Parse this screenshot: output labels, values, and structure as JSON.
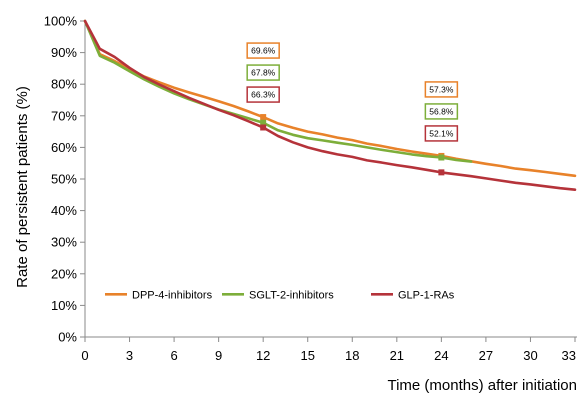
{
  "chart_data": {
    "type": "line",
    "title": "",
    "xlabel": "Time (months) after initiation",
    "ylabel": "Rate of persistent patients (%)",
    "xlim": [
      0,
      33
    ],
    "ylim": [
      0,
      100
    ],
    "x_ticks": [
      0,
      3,
      6,
      9,
      12,
      15,
      18,
      21,
      24,
      27,
      30,
      33
    ],
    "y_ticks": [
      0,
      10,
      20,
      30,
      40,
      50,
      60,
      70,
      80,
      90,
      100
    ],
    "y_tick_suffix": "%",
    "grid": false,
    "legend_position": "lower-center",
    "series": [
      {
        "name": "DPP-4-inhibitors",
        "color": "#E8822A",
        "x": [
          0,
          1,
          2,
          3,
          4,
          5,
          6,
          7,
          8,
          9,
          10,
          11,
          12,
          13,
          14,
          15,
          16,
          17,
          18,
          19,
          20,
          21,
          22,
          23,
          24,
          25,
          26,
          27,
          28,
          29,
          30,
          31,
          32,
          33
        ],
        "values": [
          100,
          89.5,
          87.3,
          84.8,
          82.4,
          80.6,
          78.9,
          77.4,
          76.0,
          74.6,
          73.1,
          71.4,
          69.6,
          67.6,
          66.2,
          65.0,
          64.1,
          63.1,
          62.3,
          61.2,
          60.4,
          59.5,
          58.7,
          58.0,
          57.3,
          56.4,
          55.6,
          54.8,
          54.1,
          53.3,
          52.8,
          52.2,
          51.6,
          51.0
        ]
      },
      {
        "name": "SGLT-2-inhibitors",
        "color": "#7DAE3A",
        "x": [
          0,
          1,
          2,
          3,
          4,
          5,
          6,
          7,
          8,
          9,
          10,
          11,
          12,
          13,
          14,
          15,
          16,
          17,
          18,
          19,
          20,
          21,
          22,
          23,
          24,
          25,
          26
        ],
        "values": [
          100,
          89.0,
          86.8,
          84.1,
          81.5,
          79.2,
          77.1,
          75.3,
          73.6,
          72.0,
          70.6,
          69.2,
          67.8,
          65.4,
          64.0,
          62.9,
          62.2,
          61.5,
          60.8,
          60.0,
          59.2,
          58.5,
          57.8,
          57.2,
          56.8,
          56.0,
          55.5
        ]
      },
      {
        "name": "GLP-1-RAs",
        "color": "#B5333A",
        "x": [
          0,
          1,
          2,
          3,
          4,
          5,
          6,
          7,
          8,
          9,
          10,
          11,
          12,
          13,
          14,
          15,
          16,
          17,
          18,
          19,
          20,
          21,
          22,
          23,
          24,
          25,
          26,
          27,
          28,
          29,
          30,
          31,
          32,
          33
        ],
        "values": [
          100,
          91.2,
          88.6,
          85.2,
          82.2,
          79.9,
          77.8,
          75.7,
          73.8,
          71.9,
          70.2,
          68.3,
          66.3,
          63.6,
          61.6,
          60.0,
          58.8,
          57.8,
          57.0,
          55.9,
          55.2,
          54.4,
          53.7,
          52.9,
          52.1,
          51.5,
          50.9,
          50.2,
          49.5,
          48.8,
          48.3,
          47.7,
          47.1,
          46.6
        ]
      }
    ],
    "annotations": [
      {
        "x": 12,
        "label": "69.6%",
        "value": 69.6,
        "series": "DPP-4-inhibitors",
        "color": "#E8822A"
      },
      {
        "x": 12,
        "label": "67.8%",
        "value": 67.8,
        "series": "SGLT-2-inhibitors",
        "color": "#7DAE3A"
      },
      {
        "x": 12,
        "label": "66.3%",
        "value": 66.3,
        "series": "GLP-1-RAs",
        "color": "#B5333A"
      },
      {
        "x": 24,
        "label": "57.3%",
        "value": 57.3,
        "series": "DPP-4-inhibitors",
        "color": "#E8822A"
      },
      {
        "x": 24,
        "label": "56.8%",
        "value": 56.8,
        "series": "SGLT-2-inhibitors",
        "color": "#7DAE3A"
      },
      {
        "x": 24,
        "label": "52.1%",
        "value": 52.1,
        "series": "GLP-1-RAs",
        "color": "#B5333A"
      }
    ]
  }
}
